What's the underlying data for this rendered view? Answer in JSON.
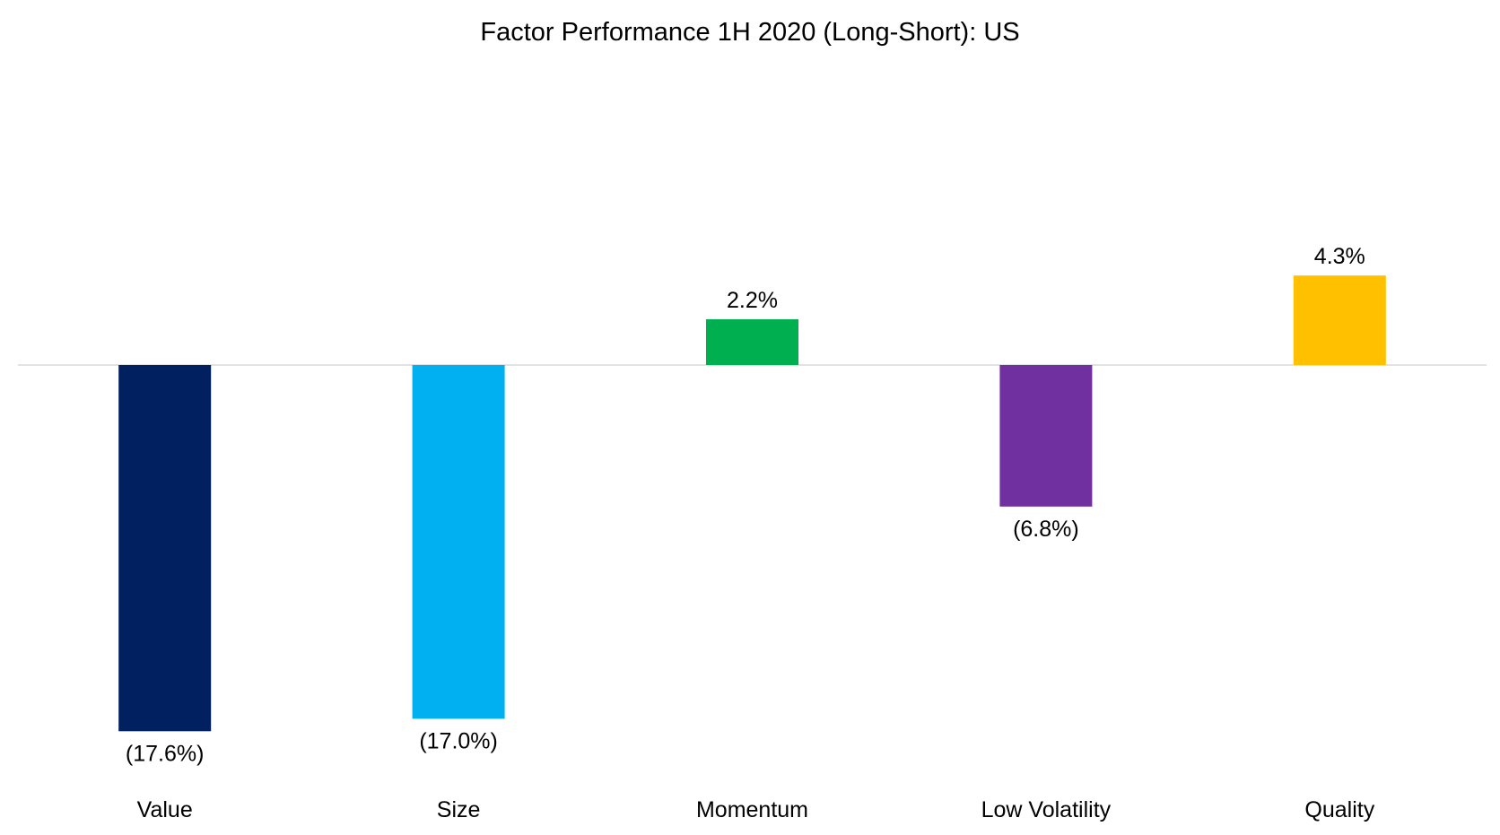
{
  "chart_data": {
    "type": "bar",
    "title": "Factor Performance 1H 2020 (Long-Short): US",
    "xlabel": "",
    "ylabel": "",
    "categories": [
      "Value",
      "Size",
      "Momentum",
      "Low Volatility",
      "Quality"
    ],
    "values": [
      -17.6,
      -17.0,
      2.2,
      -6.8,
      4.3
    ],
    "data_labels": [
      "(17.6%)",
      "(17.0%)",
      "2.2%",
      "(6.8%)",
      "4.3%"
    ],
    "colors": [
      "#002060",
      "#00B0F0",
      "#00B050",
      "#7030A0",
      "#FFC000"
    ],
    "axis_line_color": "#D9D9D9",
    "grid": false,
    "legend": "none",
    "ylim": [
      -20,
      12
    ]
  }
}
